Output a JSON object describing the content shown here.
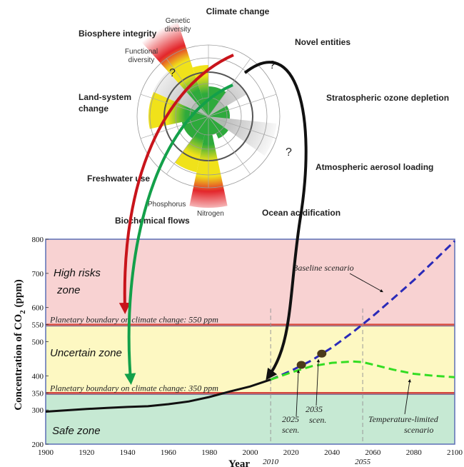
{
  "radial": {
    "labels": {
      "climate_change": "Climate change",
      "novel_entities": "Novel entities",
      "ozone": "Stratospheric ozone depletion",
      "aerosol": "Atmospheric aerosol loading",
      "ocean": "Ocean acidification",
      "biochemical": "Biochemical flows",
      "nitrogen": "Nitrogen",
      "phosphorus": "Phosphorus",
      "freshwater": "Freshwater use",
      "land": "Land-system change",
      "biosphere": "Biosphere integrity",
      "functional_1": "Functional",
      "functional_2": "diversity",
      "genetic_1": "Genetic",
      "genetic_2": "diversity",
      "question": "?"
    },
    "colors": {
      "safe": "#2eaa3c",
      "increasing": "#f0e21a",
      "high": "#e3262b",
      "unknown": "#cccccc"
    }
  },
  "chart_data": {
    "type": "line",
    "xlabel": "Year",
    "ylabel_main": "Concentration of CO",
    "ylabel_sub": "2",
    "ylabel_unit": " (ppm)",
    "xlim": [
      1900,
      2100
    ],
    "ylim": [
      200,
      800
    ],
    "x_ticks": [
      1900,
      1920,
      1940,
      1960,
      1980,
      2000,
      2020,
      2040,
      2060,
      2080,
      2100
    ],
    "x_extra_ticks": [
      2010,
      2055
    ],
    "y_ticks": [
      200,
      300,
      350,
      400,
      500,
      550,
      600,
      700,
      800
    ],
    "zones": [
      {
        "name": "High risks",
        "line2": "zone",
        "from": 550,
        "to": 800,
        "color": "#f8d2d2"
      },
      {
        "name": "Uncertain zone",
        "from": 350,
        "to": 550,
        "color": "#fdf8c2"
      },
      {
        "name": "Safe zone",
        "from": 200,
        "to": 350,
        "color": "#c6e9d3"
      }
    ],
    "boundaries": [
      {
        "value": 550,
        "label": "Planetary boundary on climate change: 550 ppm"
      },
      {
        "value": 350,
        "label": "Planetary boundary on climate change: 350 ppm"
      }
    ],
    "series": [
      {
        "role": "historical",
        "color": "#111111",
        "x": [
          1900,
          1910,
          1920,
          1930,
          1940,
          1950,
          1960,
          1970,
          1980,
          1990,
          2000,
          2010
        ],
        "y": [
          295,
          299,
          303,
          306,
          309,
          311,
          317,
          325,
          338,
          354,
          369,
          389
        ]
      },
      {
        "name": "Baseline scenario",
        "color": "#2a2ab8",
        "x": [
          2010,
          2020,
          2030,
          2040,
          2050,
          2060,
          2070,
          2080,
          2090,
          2100
        ],
        "y": [
          389,
          415,
          445,
          483,
          527,
          575,
          627,
          680,
          737,
          795
        ]
      },
      {
        "name": "Temperature-limited scenario",
        "color": "#33dd22",
        "x": [
          2010,
          2020,
          2030,
          2040,
          2050,
          2055,
          2060,
          2070,
          2080,
          2090,
          2100
        ],
        "y": [
          389,
          410,
          428,
          438,
          442,
          440,
          433,
          418,
          406,
          400,
          396
        ]
      }
    ],
    "points": [
      {
        "x": 2025,
        "y": 432,
        "label1": "2025",
        "label2": "scen."
      },
      {
        "x": 2035,
        "y": 465,
        "label1": "2035",
        "label2": "scen."
      }
    ]
  }
}
